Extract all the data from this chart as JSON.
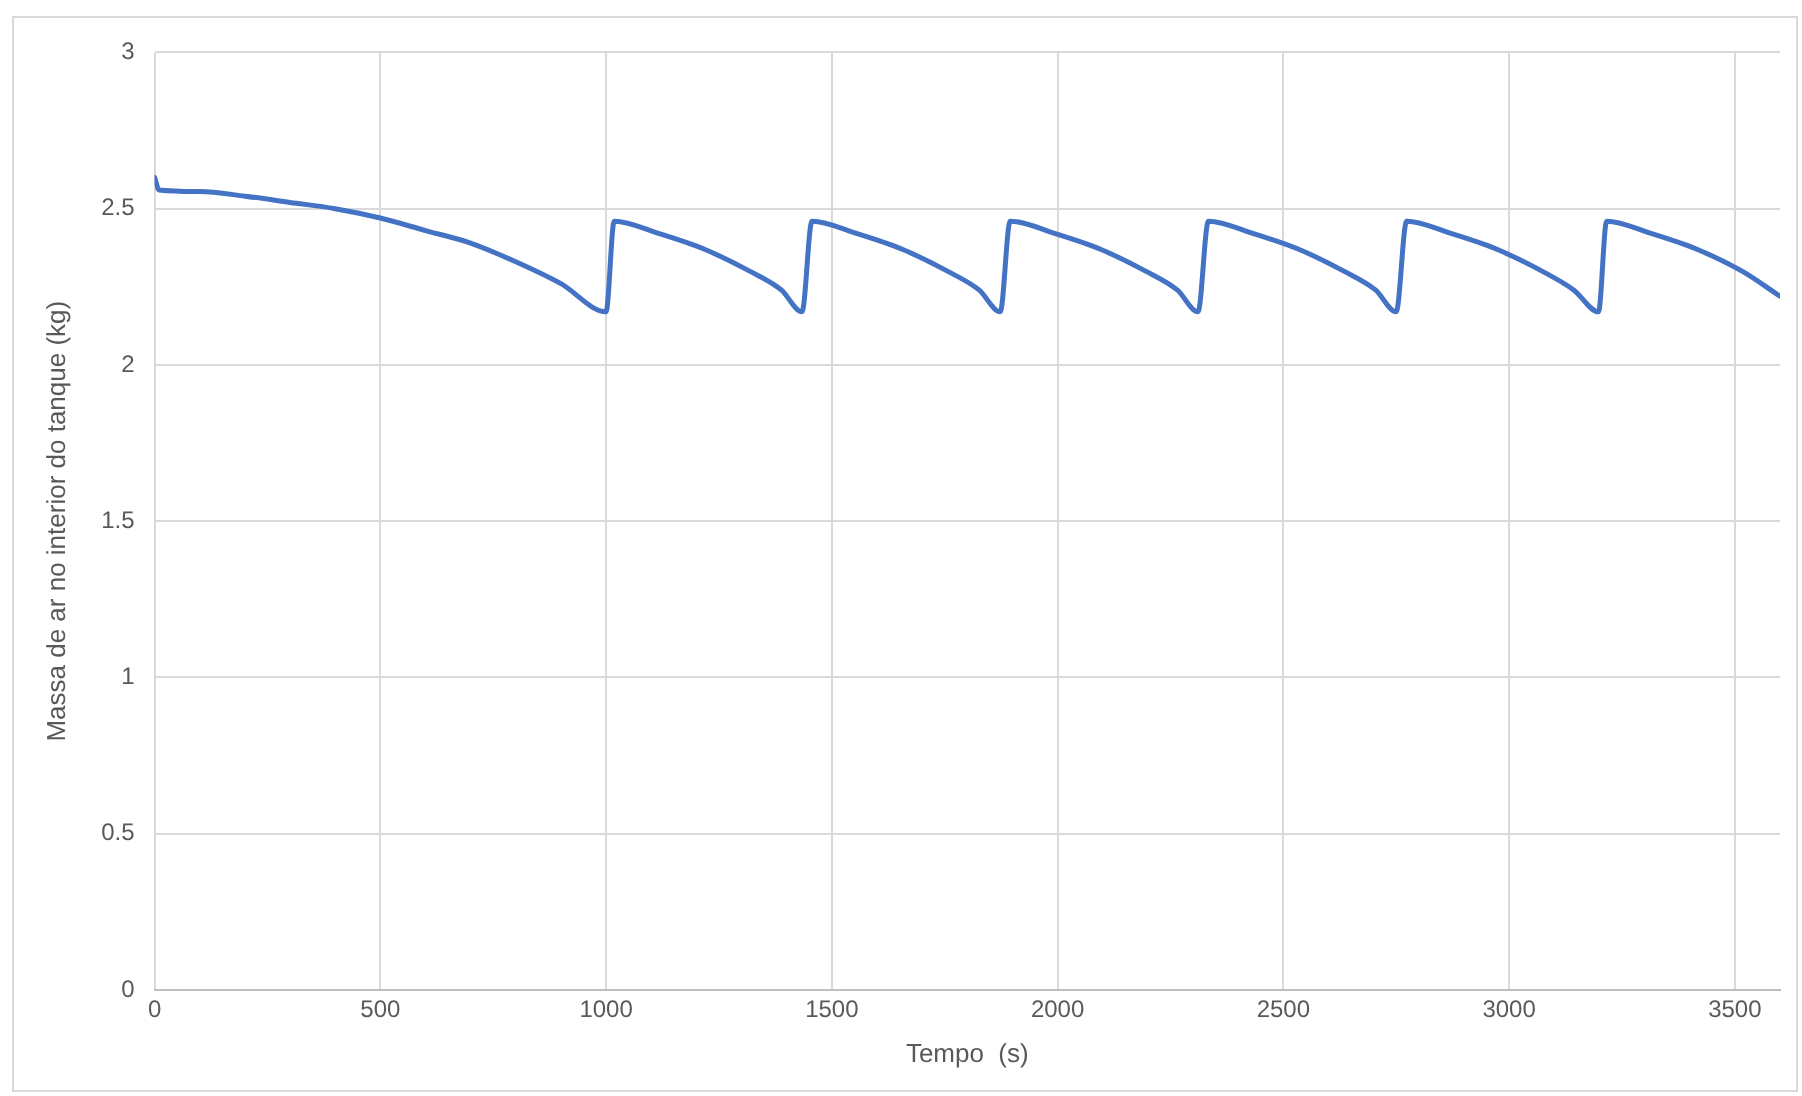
{
  "chart_data": {
    "type": "line",
    "xlabel": "Tempo  (s)",
    "ylabel": "Massa de ar no interior do tanque (kg)",
    "xlim": [
      0,
      3600
    ],
    "xticks": [
      0,
      500,
      1000,
      1500,
      2000,
      2500,
      3000,
      3500
    ],
    "ylim": [
      0,
      3
    ],
    "yticks": [
      0,
      0.5,
      1,
      1.5,
      2,
      2.5,
      3
    ],
    "grid": true,
    "legend": false,
    "marker": "none",
    "line_style": "solid",
    "series": [
      {
        "color": "#4472c4",
        "x": [
          0,
          10,
          100,
          200,
          300,
          400,
          500,
          600,
          700,
          800,
          900,
          1000,
          1018,
          1118,
          1218,
          1318,
          1388,
          1434,
          1456,
          1556,
          1656,
          1756,
          1826,
          1873,
          1895,
          1995,
          2095,
          2195,
          2265,
          2311,
          2334,
          2434,
          2534,
          2634,
          2704,
          2750,
          2773,
          2873,
          2973,
          3073,
          3143,
          3198,
          3216,
          3316,
          3416,
          3516,
          3600
        ],
        "values": [
          2.6,
          2.56,
          2.555,
          2.54,
          2.52,
          2.5,
          2.47,
          2.43,
          2.39,
          2.33,
          2.26,
          2.17,
          2.46,
          2.42,
          2.37,
          2.3,
          2.24,
          2.17,
          2.46,
          2.42,
          2.37,
          2.3,
          2.24,
          2.17,
          2.46,
          2.42,
          2.37,
          2.3,
          2.24,
          2.17,
          2.46,
          2.42,
          2.37,
          2.3,
          2.24,
          2.17,
          2.46,
          2.42,
          2.37,
          2.3,
          2.24,
          2.17,
          2.46,
          2.42,
          2.37,
          2.3,
          2.22
        ]
      }
    ]
  }
}
